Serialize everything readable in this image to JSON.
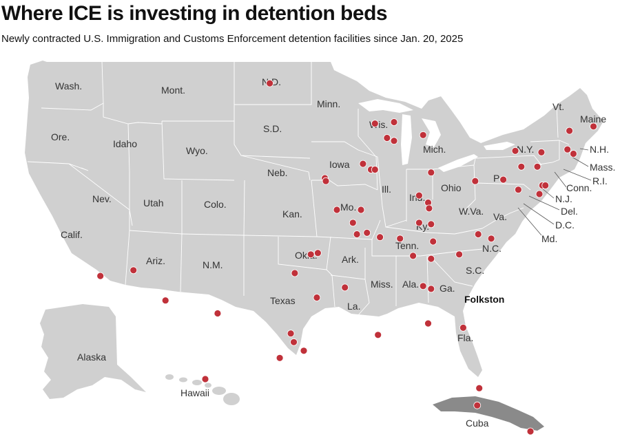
{
  "title": "Where ICE is investing in detention beds",
  "subtitle": "Newly contracted U.S. Immigration and Customs Enforcement detention facilities since Jan. 20, 2025",
  "colors": {
    "land": "#d0d0d0",
    "cuba": "#8a8a8a",
    "border": "#ffffff",
    "facility": "#c0313a",
    "text": "#333333"
  },
  "state_labels": [
    "Wash.",
    "Mont.",
    "N.D.",
    "Minn.",
    "Ore.",
    "Idaho",
    "Wyo.",
    "S.D.",
    "Wis.",
    "Mich.",
    "Vt.",
    "Maine",
    "N.Y.",
    "N.H.",
    "Mass.",
    "R.I.",
    "Conn.",
    "N.J.",
    "Del.",
    "D.C.",
    "Md.",
    "Va.",
    "Pa.",
    "Ohio",
    "Ind.",
    "Ill.",
    "Iowa",
    "Neb.",
    "Nev.",
    "Utah",
    "Colo.",
    "Kan.",
    "Mo.",
    "Ky.",
    "W.Va.",
    "N.C.",
    "Tenn.",
    "S.C.",
    "Calif.",
    "Ariz.",
    "N.M.",
    "Okla.",
    "Ark.",
    "Miss.",
    "Ala.",
    "Ga.",
    "Texas",
    "La.",
    "Fla.",
    "Alaska",
    "Hawaii",
    "Cuba"
  ],
  "highlight_label": "Folkston",
  "facilities": [
    {
      "lon": -101.3,
      "lat": 47.8
    },
    {
      "lon": -90.8,
      "lat": 45.0
    },
    {
      "lon": -88.9,
      "lat": 45.1
    },
    {
      "lon": -89.6,
      "lat": 44.0
    },
    {
      "lon": -86.0,
      "lat": 44.2
    },
    {
      "lon": -88.9,
      "lat": 43.8
    },
    {
      "lon": -71.4,
      "lat": 44.5
    },
    {
      "lon": -69.0,
      "lat": 44.8
    },
    {
      "lon": -76.8,
      "lat": 43.1
    },
    {
      "lon": -74.2,
      "lat": 43.0
    },
    {
      "lon": -71.6,
      "lat": 43.2
    },
    {
      "lon": -71.0,
      "lat": 42.9
    },
    {
      "lon": -92.0,
      "lat": 42.2
    },
    {
      "lon": -91.2,
      "lat": 41.8
    },
    {
      "lon": -90.8,
      "lat": 41.8
    },
    {
      "lon": -95.8,
      "lat": 41.2
    },
    {
      "lon": -95.7,
      "lat": 41.0
    },
    {
      "lon": -76.2,
      "lat": 42.0
    },
    {
      "lon": -74.6,
      "lat": 42.0
    },
    {
      "lon": -85.2,
      "lat": 41.6
    },
    {
      "lon": -80.8,
      "lat": 41.0
    },
    {
      "lon": -78.0,
      "lat": 41.1
    },
    {
      "lon": -76.5,
      "lat": 40.4
    },
    {
      "lon": -74.1,
      "lat": 40.7
    },
    {
      "lon": -73.8,
      "lat": 40.7
    },
    {
      "lon": -74.4,
      "lat": 40.1
    },
    {
      "lon": -86.4,
      "lat": 40.0
    },
    {
      "lon": -94.6,
      "lat": 39.0
    },
    {
      "lon": -92.2,
      "lat": 39.0
    },
    {
      "lon": -85.5,
      "lat": 39.5
    },
    {
      "lon": -85.4,
      "lat": 39.1
    },
    {
      "lon": -86.4,
      "lat": 38.1
    },
    {
      "lon": -85.2,
      "lat": 38.0
    },
    {
      "lon": -93.0,
      "lat": 38.1
    },
    {
      "lon": -92.6,
      "lat": 37.3
    },
    {
      "lon": -91.6,
      "lat": 37.4
    },
    {
      "lon": -90.3,
      "lat": 37.1
    },
    {
      "lon": -88.3,
      "lat": 37.0
    },
    {
      "lon": -85.0,
      "lat": 36.8
    },
    {
      "lon": -80.5,
      "lat": 37.3
    },
    {
      "lon": -79.2,
      "lat": 37.0
    },
    {
      "lon": -82.4,
      "lat": 35.9
    },
    {
      "lon": -87.0,
      "lat": 35.8
    },
    {
      "lon": -85.2,
      "lat": 35.6
    },
    {
      "lon": -97.2,
      "lat": 35.9
    },
    {
      "lon": -96.5,
      "lat": 36.0
    },
    {
      "lon": -98.8,
      "lat": 34.6
    },
    {
      "lon": -93.8,
      "lat": 33.6
    },
    {
      "lon": -96.6,
      "lat": 32.9
    },
    {
      "lon": -86.0,
      "lat": 33.7
    },
    {
      "lon": -85.2,
      "lat": 33.5
    },
    {
      "lon": -106.5,
      "lat": 31.8
    },
    {
      "lon": -99.2,
      "lat": 30.4
    },
    {
      "lon": -98.9,
      "lat": 29.8
    },
    {
      "lon": -97.9,
      "lat": 29.2
    },
    {
      "lon": -100.3,
      "lat": 28.7
    },
    {
      "lon": -90.5,
      "lat": 30.3
    },
    {
      "lon": -85.5,
      "lat": 31.1
    },
    {
      "lon": -82.0,
      "lat": 30.8
    },
    {
      "lon": -80.4,
      "lat": 26.6
    },
    {
      "lon": -80.6,
      "lat": 25.4
    },
    {
      "lon": -111.7,
      "lat": 32.7
    },
    {
      "lon": -114.9,
      "lat": 34.8
    },
    {
      "lon": -118.2,
      "lat": 34.4
    }
  ],
  "hawaii_facility": true,
  "cuba_facility": true
}
